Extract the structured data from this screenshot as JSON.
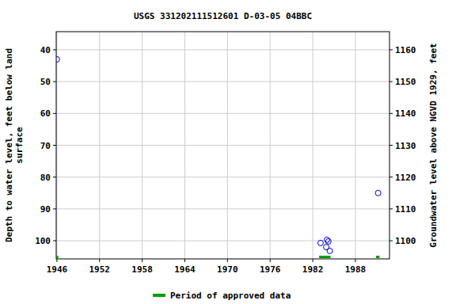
{
  "chart_data": {
    "type": "scatter",
    "title": "USGS 331202111512601 D-03-05 04BBC",
    "y_label": "Depth to water level, feet below land surface",
    "y2_label": "Groundwater level above NGVD 1929, feet",
    "xlim": [
      1945.9,
      1992.8
    ],
    "xticks": [
      1946,
      1952,
      1958,
      1964,
      1970,
      1976,
      1982,
      1988
    ],
    "ylim": [
      34.3,
      105.7
    ],
    "yticks": [
      40,
      50,
      60,
      70,
      80,
      90,
      100
    ],
    "y2lim": [
      1094.3,
      1165.7
    ],
    "y2ticks": [
      1100,
      1110,
      1120,
      1130,
      1140,
      1150,
      1160
    ],
    "grid": true,
    "legend": "bottom",
    "series": [
      {
        "type": "scatter",
        "color": "#0000cc",
        "marker": "circle",
        "x": [
          1946.0,
          1983.1,
          1983.9,
          1984.0,
          1984.2,
          1984.4,
          1991.2
        ],
        "values": [
          43,
          100.7,
          102,
          99.7,
          100.2,
          103.2,
          85
        ]
      },
      {
        "name": "Period of approved data",
        "type": "span",
        "color": "#00a000",
        "starts": [
          1945.9,
          1982.9,
          1990.9
        ],
        "ends": [
          1946.2,
          1984.5,
          1991.4
        ]
      }
    ]
  }
}
